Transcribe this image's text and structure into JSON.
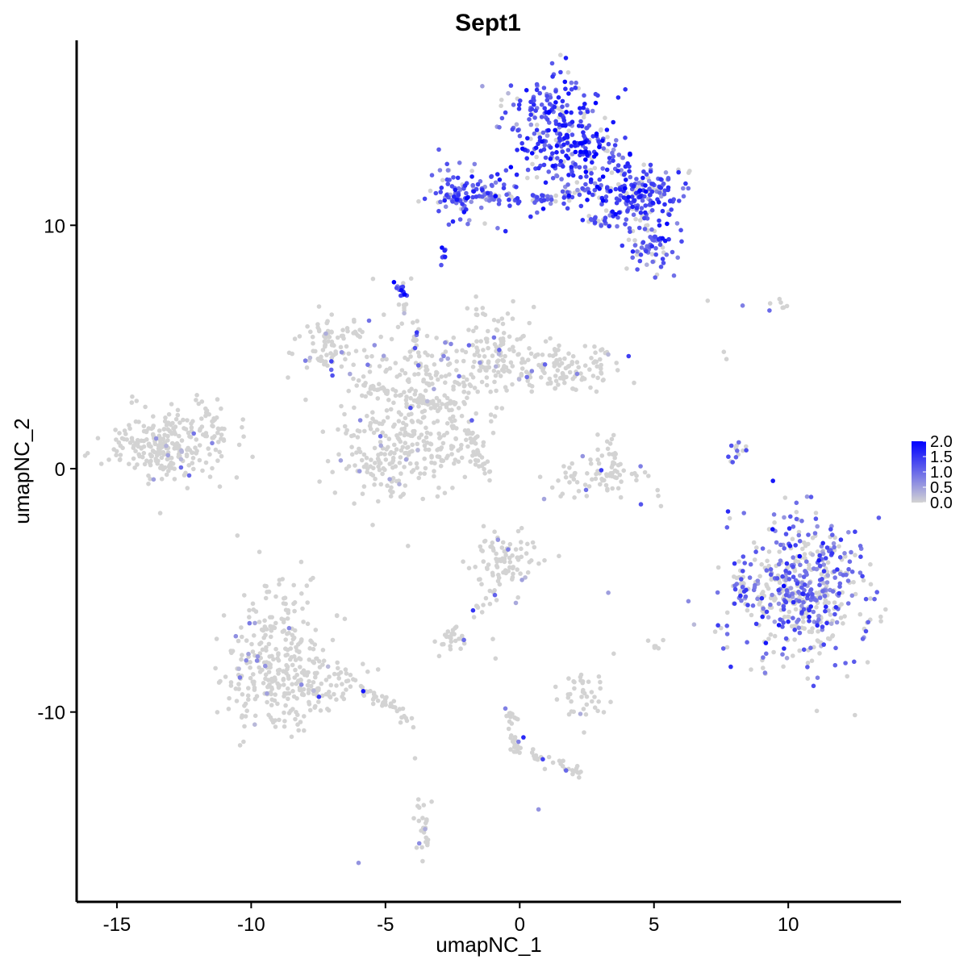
{
  "chart_data": {
    "type": "scatter",
    "title": "Sept1",
    "xlabel": "umapNC_1",
    "ylabel": "umapNC_2",
    "xlim": [
      -16.5,
      14.2
    ],
    "ylim": [
      -17.8,
      17.6
    ],
    "x_ticks": [
      -15,
      -10,
      -5,
      0,
      5,
      10
    ],
    "y_ticks": [
      -10,
      0,
      10
    ],
    "x_tick_labels": [
      "-15",
      "-10",
      "-5",
      "0",
      "5",
      "10"
    ],
    "y_tick_labels": [
      "-10",
      "0",
      "10"
    ],
    "grid": false,
    "color_scale": {
      "low_color": "#d3d3d3",
      "high_color": "#0000ff",
      "min": 0.0,
      "max": 2.0,
      "ticks": [
        2.0,
        1.5,
        1.0,
        0.5,
        0.0
      ],
      "tick_labels": [
        "2.0",
        "1.5",
        "1.0",
        "0.5",
        "0.0"
      ],
      "legend_position": "right"
    },
    "clusters": [
      {
        "cx": -13.0,
        "cy": 1.0,
        "sx": 1.1,
        "sy": 0.7,
        "n": 260,
        "expr_frac": 0.03,
        "expr_level": 0.6
      },
      {
        "cx": -7.0,
        "cy": 5.0,
        "sx": 0.7,
        "sy": 0.6,
        "n": 90,
        "expr_frac": 0.12,
        "expr_level": 0.6
      },
      {
        "cx": -3.5,
        "cy": 3.0,
        "sx": 1.3,
        "sy": 1.6,
        "n": 250,
        "expr_frac": 0.05,
        "expr_level": 0.6
      },
      {
        "cx": -4.5,
        "cy": 0.5,
        "sx": 1.2,
        "sy": 0.9,
        "n": 180,
        "expr_frac": 0.04,
        "expr_level": 0.6
      },
      {
        "cx": -0.8,
        "cy": 5.0,
        "sx": 0.7,
        "sy": 1.0,
        "n": 90,
        "expr_frac": 0.06,
        "expr_level": 0.6
      },
      {
        "cx": 1.5,
        "cy": 4.2,
        "sx": 1.3,
        "sy": 0.5,
        "n": 140,
        "expr_frac": 0.05,
        "expr_level": 0.6
      },
      {
        "cx": 3.0,
        "cy": -0.2,
        "sx": 0.9,
        "sy": 0.6,
        "n": 80,
        "expr_frac": 0.08,
        "expr_level": 0.6
      },
      {
        "cx": 1.2,
        "cy": 14.0,
        "sx": 0.9,
        "sy": 1.2,
        "n": 240,
        "expr_frac": 0.85,
        "expr_level": 1.3
      },
      {
        "cx": 2.5,
        "cy": 12.8,
        "sx": 0.8,
        "sy": 1.0,
        "n": 110,
        "expr_frac": 0.8,
        "expr_level": 1.5
      },
      {
        "cx": 4.5,
        "cy": 11.3,
        "sx": 0.9,
        "sy": 0.7,
        "n": 200,
        "expr_frac": 0.8,
        "expr_level": 1.3
      },
      {
        "cx": -2.2,
        "cy": 11.3,
        "sx": 0.7,
        "sy": 0.5,
        "n": 110,
        "expr_frac": 0.85,
        "expr_level": 1.2
      },
      {
        "cx": 4.8,
        "cy": 9.2,
        "sx": 0.6,
        "sy": 0.5,
        "n": 70,
        "expr_frac": 0.75,
        "expr_level": 1.2
      },
      {
        "cx": 10.5,
        "cy": -5.0,
        "sx": 1.2,
        "sy": 1.5,
        "n": 520,
        "expr_frac": 0.55,
        "expr_level": 1.0
      },
      {
        "cx": -9.0,
        "cy": -7.5,
        "sx": 1.0,
        "sy": 1.4,
        "n": 220,
        "expr_frac": 0.05,
        "expr_level": 0.6
      },
      {
        "cx": -8.5,
        "cy": -9.0,
        "sx": 1.3,
        "sy": 0.6,
        "n": 150,
        "expr_frac": 0.04,
        "expr_level": 0.6
      },
      {
        "cx": -0.5,
        "cy": -3.8,
        "sx": 0.6,
        "sy": 0.6,
        "n": 90,
        "expr_frac": 0.08,
        "expr_level": 0.6
      },
      {
        "cx": 2.3,
        "cy": -9.3,
        "sx": 0.4,
        "sy": 0.5,
        "n": 40,
        "expr_frac": 0.06,
        "expr_level": 0.6
      },
      {
        "cx": -2.5,
        "cy": -6.9,
        "sx": 0.3,
        "sy": 0.2,
        "n": 25,
        "expr_frac": 0.05,
        "expr_level": 0.6
      },
      {
        "cx": -3.6,
        "cy": -14.8,
        "sx": 0.2,
        "sy": 0.6,
        "n": 25,
        "expr_frac": 0.1,
        "expr_level": 0.6
      },
      {
        "cx": -4.4,
        "cy": 7.3,
        "sx": 0.15,
        "sy": 0.15,
        "n": 14,
        "expr_frac": 1.0,
        "expr_level": 1.4
      }
    ],
    "streaks": [
      {
        "x1": -6.0,
        "y1": 3.5,
        "x2": -2.5,
        "y2": 2.5,
        "n": 50,
        "expr_frac": 0.05
      },
      {
        "x1": -4.4,
        "y1": 7.0,
        "x2": -3.5,
        "y2": 3.8,
        "n": 25,
        "expr_frac": 0.2
      },
      {
        "x1": -2.0,
        "y1": 1.6,
        "x2": -1.2,
        "y2": -0.3,
        "n": 35,
        "expr_frac": 0.0
      },
      {
        "x1": -11.0,
        "y1": 1.4,
        "x2": -12.0,
        "y2": 2.8,
        "n": 20,
        "expr_frac": 0.0
      },
      {
        "x1": -6.5,
        "y1": -8.5,
        "x2": -4.0,
        "y2": -10.4,
        "n": 45,
        "expr_frac": 0.04
      },
      {
        "x1": -0.4,
        "y1": -10.0,
        "x2": 0.0,
        "y2": -11.8,
        "n": 30,
        "expr_frac": 0.05
      },
      {
        "x1": 0.3,
        "y1": -11.7,
        "x2": 2.5,
        "y2": -12.6,
        "n": 30,
        "expr_frac": 0.05
      },
      {
        "x1": -1.0,
        "y1": -5.0,
        "x2": -1.8,
        "y2": -6.2,
        "n": 12,
        "expr_frac": 0.1
      },
      {
        "x1": 8.3,
        "y1": 1.2,
        "x2": 7.8,
        "y2": 0.0,
        "n": 14,
        "expr_frac": 0.5
      },
      {
        "x1": 0.5,
        "y1": 11.0,
        "x2": 2.5,
        "y2": 11.5,
        "n": 40,
        "expr_frac": 0.8
      },
      {
        "x1": -1.5,
        "y1": 11.2,
        "x2": 0.2,
        "y2": 11.0,
        "n": 30,
        "expr_frac": 0.8
      },
      {
        "x1": 2.5,
        "y1": 10.3,
        "x2": 3.5,
        "y2": 10.1,
        "n": 20,
        "expr_frac": 0.85
      },
      {
        "x1": -2.8,
        "y1": 9.2,
        "x2": -2.8,
        "y2": 8.4,
        "n": 8,
        "expr_frac": 1.0
      },
      {
        "x1": 5.1,
        "y1": -7.1,
        "x2": 5.0,
        "y2": -7.3,
        "n": 6,
        "expr_frac": 0.0
      },
      {
        "x1": 8.0,
        "y1": -3.9,
        "x2": 8.3,
        "y2": -5.4,
        "n": 18,
        "expr_frac": 0.6
      },
      {
        "x1": 9.5,
        "y1": 6.8,
        "x2": 9.9,
        "y2": 6.6,
        "n": 6,
        "expr_frac": 0.0
      },
      {
        "x1": 3.3,
        "y1": 1.2,
        "x2": 3.5,
        "y2": 0.3,
        "n": 8,
        "expr_frac": 0.1
      }
    ],
    "singles": [
      {
        "x": 7.0,
        "y": 6.9,
        "v": 0.0
      },
      {
        "x": 8.3,
        "y": 6.7,
        "v": 0.8
      },
      {
        "x": 9.3,
        "y": 6.5,
        "v": 1.0
      },
      {
        "x": 7.6,
        "y": 4.8,
        "v": 0.0
      },
      {
        "x": 7.7,
        "y": 4.5,
        "v": 0.0
      },
      {
        "x": -6.0,
        "y": -16.2,
        "v": 0.6
      },
      {
        "x": 0.7,
        "y": -14.0,
        "v": 0.6
      },
      {
        "x": -3.0,
        "y": -7.7,
        "v": 0.0
      },
      {
        "x": -1.0,
        "y": -7.0,
        "v": 0.0
      },
      {
        "x": -0.9,
        "y": -7.8,
        "v": 0.0
      },
      {
        "x": 3.3,
        "y": -5.1,
        "v": 0.5
      },
      {
        "x": 3.5,
        "y": -7.6,
        "v": 0.0
      },
      {
        "x": -3.9,
        "y": -11.9,
        "v": 0.0
      },
      {
        "x": 4.5,
        "y": 0.1,
        "v": 0.8
      }
    ]
  }
}
